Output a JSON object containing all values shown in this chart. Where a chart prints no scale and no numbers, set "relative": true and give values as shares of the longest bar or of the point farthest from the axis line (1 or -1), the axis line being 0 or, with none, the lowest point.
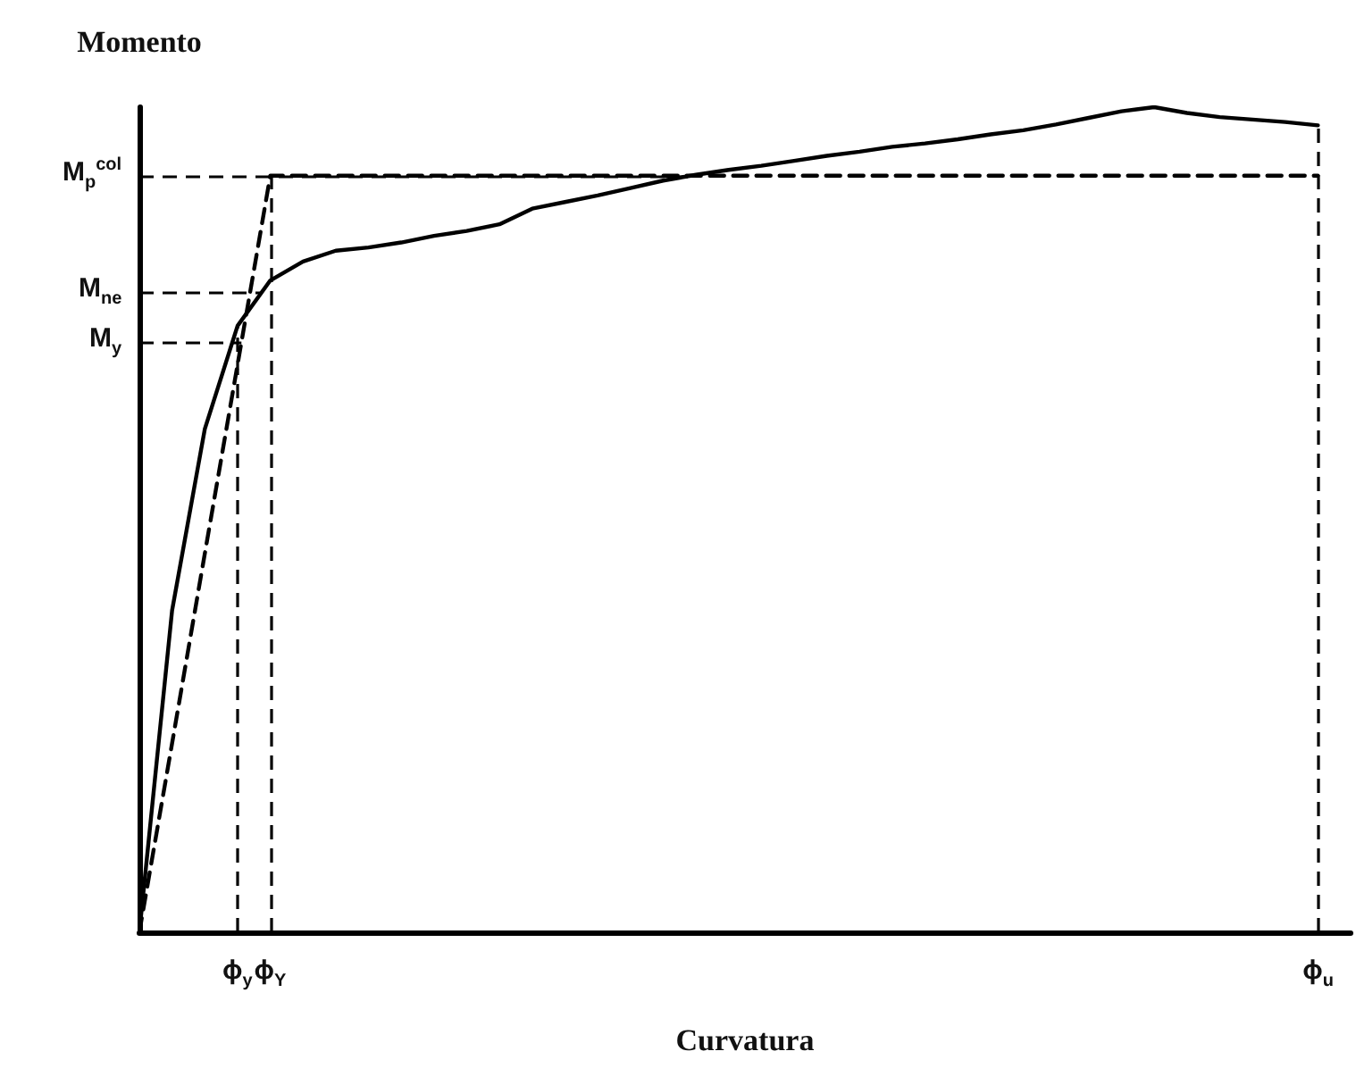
{
  "chart_data": {
    "type": "line",
    "ylabel": "Momento",
    "xlabel": "Curvatura",
    "relative": true,
    "grid": false,
    "marker": "none",
    "categories": [
      null,
      null,
      null,
      "ϕ$_{y}$",
      "ϕ$_{Y}$",
      null,
      null,
      null,
      null,
      null,
      null,
      null,
      null,
      null,
      null,
      null,
      null,
      null,
      null,
      null,
      null,
      null,
      null,
      null,
      null,
      null,
      null,
      null,
      null,
      null,
      null,
      null,
      null,
      null,
      null,
      null,
      "ϕ$_{u}$",
      null
    ],
    "series": [
      {
        "color": "#000000",
        "line_style": "solid",
        "values": [
          0,
          0.39,
          0.61,
          0.735,
          0.79,
          0.813,
          0.826,
          0.83,
          0.836,
          0.844,
          0.85,
          0.858,
          0.877,
          0.885,
          0.893,
          0.902,
          0.911,
          0.918,
          0.924,
          0.929,
          0.935,
          0.941,
          0.946,
          0.952,
          0.956,
          0.961,
          0.967,
          0.972,
          0.979,
          0.987,
          0.995,
          1,
          0.993,
          0.988,
          0.985,
          0.982,
          0.978,
          null
        ]
      },
      {
        "color": "#000000",
        "line_style": "dashed",
        "values": [
          0,
          0.229,
          0.459,
          0.688,
          0.917,
          0.917,
          0.917,
          0.917,
          0.917,
          0.917,
          0.917,
          0.917,
          0.917,
          0.917,
          0.917,
          0.917,
          0.917,
          0.917,
          0.917,
          0.917,
          0.917,
          0.917,
          0.917,
          0.917,
          0.917,
          0.917,
          0.917,
          0.917,
          0.917,
          0.917,
          0.917,
          0.917,
          0.917,
          0.917,
          0.917,
          0.917,
          0.917,
          null
        ]
      }
    ],
    "ref_lines": [
      {
        "axis": "y",
        "value": 0.917,
        "label": "M$_{p}$$^{col}$",
        "line_style": "dashed"
      },
      {
        "axis": "y",
        "value": 0.776,
        "label": "M$_{ne}$",
        "line_style": "dashed"
      },
      {
        "axis": "y",
        "value": 0.715,
        "label": "M$_{y}$",
        "line_style": "dashed"
      },
      {
        "axis": "x",
        "value": "ϕ$_{y}$",
        "line_style": "dashed"
      },
      {
        "axis": "x",
        "value": "ϕ$_{Y}$",
        "line_style": "dashed"
      },
      {
        "axis": "x",
        "value": "ϕ$_{u}$",
        "line_style": "dashed"
      }
    ]
  }
}
